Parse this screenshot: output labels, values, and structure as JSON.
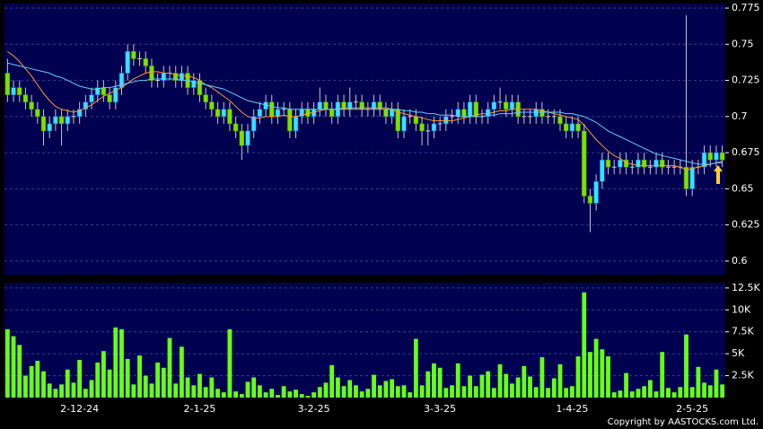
{
  "chart_data": [
    {
      "type": "candlestick",
      "open": [
        0.73,
        0.715,
        0.72,
        0.715,
        0.71,
        0.705,
        0.7,
        0.69,
        0.695,
        0.7,
        0.695,
        0.7,
        0.7,
        0.705,
        0.71,
        0.715,
        0.72,
        0.715,
        0.71,
        0.72,
        0.73,
        0.745,
        0.74,
        0.74,
        0.735,
        0.725,
        0.725,
        0.73,
        0.73,
        0.725,
        0.73,
        0.72,
        0.725,
        0.715,
        0.71,
        0.705,
        0.7,
        0.705,
        0.695,
        0.69,
        0.68,
        0.69,
        0.7,
        0.705,
        0.71,
        0.7,
        0.705,
        0.705,
        0.69,
        0.7,
        0.705,
        0.7,
        0.705,
        0.71,
        0.705,
        0.7,
        0.71,
        0.705,
        0.71,
        0.71,
        0.705,
        0.705,
        0.71,
        0.705,
        0.7,
        0.705,
        0.69,
        0.7,
        0.7,
        0.695,
        0.69,
        0.69,
        0.695,
        0.695,
        0.7,
        0.7,
        0.705,
        0.7,
        0.71,
        0.7,
        0.7,
        0.705,
        0.71,
        0.71,
        0.705,
        0.71,
        0.7,
        0.7,
        0.7,
        0.705,
        0.7,
        0.7,
        0.7,
        0.695,
        0.69,
        0.695,
        0.69,
        0.645,
        0.64,
        0.655,
        0.67,
        0.665,
        0.665,
        0.67,
        0.665,
        0.665,
        0.67,
        0.665,
        0.665,
        0.67,
        0.665,
        0.665,
        0.665,
        0.665,
        0.65,
        0.665,
        0.665,
        0.675,
        0.67,
        0.675
      ],
      "high": [
        0.74,
        0.725,
        0.725,
        0.72,
        0.715,
        0.71,
        0.705,
        0.7,
        0.705,
        0.705,
        0.705,
        0.705,
        0.71,
        0.715,
        0.72,
        0.725,
        0.725,
        0.72,
        0.725,
        0.735,
        0.75,
        0.75,
        0.745,
        0.745,
        0.74,
        0.73,
        0.735,
        0.735,
        0.735,
        0.735,
        0.735,
        0.73,
        0.73,
        0.72,
        0.715,
        0.71,
        0.71,
        0.71,
        0.7,
        0.695,
        0.695,
        0.705,
        0.71,
        0.715,
        0.715,
        0.71,
        0.71,
        0.71,
        0.705,
        0.71,
        0.71,
        0.71,
        0.72,
        0.715,
        0.71,
        0.715,
        0.715,
        0.72,
        0.715,
        0.715,
        0.71,
        0.715,
        0.715,
        0.71,
        0.71,
        0.71,
        0.705,
        0.705,
        0.705,
        0.7,
        0.695,
        0.7,
        0.7,
        0.705,
        0.705,
        0.71,
        0.71,
        0.715,
        0.715,
        0.705,
        0.71,
        0.715,
        0.72,
        0.715,
        0.715,
        0.715,
        0.705,
        0.705,
        0.71,
        0.71,
        0.705,
        0.705,
        0.705,
        0.7,
        0.7,
        0.7,
        0.695,
        0.65,
        0.66,
        0.675,
        0.675,
        0.67,
        0.675,
        0.675,
        0.67,
        0.675,
        0.675,
        0.67,
        0.675,
        0.675,
        0.67,
        0.67,
        0.67,
        0.77,
        0.67,
        0.67,
        0.68,
        0.68,
        0.68,
        0.68
      ],
      "low": [
        0.71,
        0.71,
        0.71,
        0.705,
        0.7,
        0.695,
        0.68,
        0.685,
        0.69,
        0.68,
        0.69,
        0.695,
        0.695,
        0.7,
        0.705,
        0.71,
        0.71,
        0.705,
        0.705,
        0.715,
        0.725,
        0.735,
        0.735,
        0.73,
        0.72,
        0.72,
        0.72,
        0.725,
        0.72,
        0.72,
        0.715,
        0.715,
        0.71,
        0.705,
        0.7,
        0.695,
        0.695,
        0.69,
        0.685,
        0.67,
        0.675,
        0.685,
        0.695,
        0.7,
        0.695,
        0.695,
        0.7,
        0.685,
        0.685,
        0.695,
        0.695,
        0.695,
        0.7,
        0.7,
        0.695,
        0.695,
        0.7,
        0.7,
        0.705,
        0.7,
        0.7,
        0.7,
        0.7,
        0.695,
        0.695,
        0.685,
        0.685,
        0.695,
        0.69,
        0.68,
        0.68,
        0.685,
        0.69,
        0.69,
        0.695,
        0.695,
        0.695,
        0.695,
        0.695,
        0.695,
        0.695,
        0.7,
        0.705,
        0.7,
        0.7,
        0.695,
        0.695,
        0.695,
        0.695,
        0.695,
        0.695,
        0.695,
        0.69,
        0.685,
        0.685,
        0.685,
        0.64,
        0.62,
        0.635,
        0.65,
        0.66,
        0.66,
        0.66,
        0.66,
        0.66,
        0.66,
        0.66,
        0.66,
        0.66,
        0.66,
        0.66,
        0.66,
        0.66,
        0.645,
        0.645,
        0.66,
        0.66,
        0.665,
        0.665,
        0.665
      ],
      "close": [
        0.715,
        0.72,
        0.715,
        0.71,
        0.705,
        0.7,
        0.69,
        0.695,
        0.7,
        0.695,
        0.7,
        0.7,
        0.705,
        0.71,
        0.715,
        0.72,
        0.715,
        0.71,
        0.72,
        0.73,
        0.745,
        0.74,
        0.74,
        0.735,
        0.725,
        0.725,
        0.73,
        0.73,
        0.725,
        0.73,
        0.72,
        0.725,
        0.715,
        0.71,
        0.705,
        0.7,
        0.705,
        0.695,
        0.69,
        0.68,
        0.69,
        0.7,
        0.705,
        0.71,
        0.7,
        0.705,
        0.705,
        0.69,
        0.7,
        0.705,
        0.7,
        0.705,
        0.71,
        0.705,
        0.7,
        0.71,
        0.705,
        0.71,
        0.71,
        0.705,
        0.705,
        0.71,
        0.705,
        0.7,
        0.705,
        0.69,
        0.7,
        0.7,
        0.695,
        0.69,
        0.69,
        0.695,
        0.695,
        0.7,
        0.7,
        0.705,
        0.7,
        0.71,
        0.7,
        0.7,
        0.705,
        0.71,
        0.71,
        0.705,
        0.71,
        0.7,
        0.7,
        0.7,
        0.705,
        0.7,
        0.7,
        0.7,
        0.695,
        0.69,
        0.695,
        0.69,
        0.645,
        0.64,
        0.655,
        0.67,
        0.665,
        0.665,
        0.67,
        0.665,
        0.665,
        0.67,
        0.665,
        0.665,
        0.67,
        0.665,
        0.665,
        0.665,
        0.665,
        0.65,
        0.665,
        0.665,
        0.675,
        0.67,
        0.675,
        0.67
      ],
      "up_color": "#33e6ff",
      "down_color": "#80e000",
      "series": [
        {
          "color": "#ff9933",
          "values": [
            0.745,
            0.742,
            0.738,
            0.733,
            0.728,
            0.722,
            0.716,
            0.711,
            0.707,
            0.705,
            0.704,
            0.703,
            0.704,
            0.706,
            0.708,
            0.711,
            0.714,
            0.716,
            0.718,
            0.72,
            0.723,
            0.726,
            0.728,
            0.73,
            0.731,
            0.731,
            0.73,
            0.73,
            0.729,
            0.728,
            0.728,
            0.727,
            0.725,
            0.722,
            0.72,
            0.717,
            0.714,
            0.711,
            0.707,
            0.703,
            0.7,
            0.699,
            0.699,
            0.7,
            0.7,
            0.7,
            0.701,
            0.7,
            0.7,
            0.701,
            0.702,
            0.703,
            0.704,
            0.705,
            0.705,
            0.705,
            0.706,
            0.706,
            0.706,
            0.706,
            0.706,
            0.706,
            0.706,
            0.706,
            0.705,
            0.703,
            0.702,
            0.701,
            0.7,
            0.699,
            0.698,
            0.697,
            0.697,
            0.697,
            0.697,
            0.698,
            0.699,
            0.7,
            0.701,
            0.702,
            0.702,
            0.703,
            0.704,
            0.704,
            0.705,
            0.705,
            0.705,
            0.705,
            0.705,
            0.704,
            0.703,
            0.702,
            0.701,
            0.7,
            0.699,
            0.698,
            0.694,
            0.689,
            0.684,
            0.68,
            0.676,
            0.673,
            0.671,
            0.668,
            0.667,
            0.666,
            0.666,
            0.666,
            0.666,
            0.666,
            0.666,
            0.666,
            0.665,
            0.663,
            0.664,
            0.665,
            0.666,
            0.667,
            0.668,
            0.669
          ]
        },
        {
          "color": "#66ccff",
          "values": [
            0.737,
            0.736,
            0.735,
            0.734,
            0.733,
            0.732,
            0.731,
            0.73,
            0.728,
            0.727,
            0.725,
            0.723,
            0.721,
            0.72,
            0.719,
            0.719,
            0.72,
            0.72,
            0.721,
            0.722,
            0.723,
            0.724,
            0.725,
            0.725,
            0.726,
            0.726,
            0.726,
            0.726,
            0.726,
            0.725,
            0.725,
            0.724,
            0.723,
            0.722,
            0.721,
            0.72,
            0.719,
            0.717,
            0.715,
            0.713,
            0.711,
            0.71,
            0.709,
            0.708,
            0.707,
            0.706,
            0.706,
            0.705,
            0.705,
            0.705,
            0.705,
            0.705,
            0.705,
            0.705,
            0.705,
            0.705,
            0.705,
            0.705,
            0.705,
            0.705,
            0.705,
            0.705,
            0.705,
            0.705,
            0.705,
            0.705,
            0.704,
            0.704,
            0.703,
            0.703,
            0.702,
            0.702,
            0.701,
            0.701,
            0.701,
            0.7,
            0.7,
            0.7,
            0.7,
            0.7,
            0.701,
            0.701,
            0.702,
            0.702,
            0.702,
            0.703,
            0.703,
            0.703,
            0.703,
            0.703,
            0.703,
            0.703,
            0.703,
            0.702,
            0.702,
            0.701,
            0.7,
            0.698,
            0.696,
            0.693,
            0.69,
            0.688,
            0.686,
            0.684,
            0.682,
            0.68,
            0.678,
            0.676,
            0.674,
            0.673,
            0.672,
            0.671,
            0.67,
            0.669,
            0.668,
            0.667,
            0.667,
            0.667,
            0.668,
            0.668
          ]
        }
      ],
      "ylim": [
        0.590625,
        0.778125
      ],
      "yticks": [
        0.6,
        0.625,
        0.65,
        0.675,
        0.7,
        0.725,
        0.75,
        0.775
      ],
      "grid": true
    },
    {
      "type": "bar",
      "categories": [
        null,
        null,
        null,
        null,
        null,
        null,
        null,
        null,
        null,
        null,
        null,
        null,
        "2-12-24",
        null,
        null,
        null,
        null,
        null,
        null,
        null,
        null,
        null,
        null,
        null,
        null,
        null,
        null,
        null,
        null,
        null,
        null,
        null,
        "2-1-25",
        null,
        null,
        null,
        null,
        null,
        null,
        null,
        null,
        null,
        null,
        null,
        null,
        null,
        null,
        null,
        null,
        null,
        null,
        "3-2-25",
        null,
        null,
        null,
        null,
        null,
        null,
        null,
        null,
        null,
        null,
        null,
        null,
        null,
        null,
        null,
        null,
        null,
        null,
        null,
        null,
        "3-3-25",
        null,
        null,
        null,
        null,
        null,
        null,
        null,
        null,
        null,
        null,
        null,
        null,
        null,
        null,
        null,
        null,
        null,
        null,
        null,
        null,
        null,
        "1-4-25",
        null,
        null,
        null,
        null,
        null,
        null,
        null,
        null,
        null,
        null,
        null,
        null,
        null,
        null,
        null,
        null,
        null,
        null,
        null,
        "2-5-25",
        null,
        null,
        null,
        null,
        null
      ],
      "values": [
        7800,
        7000,
        6000,
        2500,
        3600,
        4200,
        3000,
        1600,
        1000,
        1500,
        3200,
        1700,
        4300,
        1000,
        2000,
        4000,
        5300,
        3200,
        8000,
        7800,
        4400,
        1500,
        4800,
        2500,
        1600,
        4000,
        3400,
        6800,
        1600,
        5800,
        2300,
        1400,
        2700,
        1200,
        2300,
        1000,
        600,
        7800,
        700,
        400,
        1800,
        2300,
        1400,
        600,
        1000,
        300,
        1300,
        700,
        900,
        400,
        200,
        600,
        1200,
        1700,
        3700,
        2300,
        1300,
        2000,
        1400,
        700,
        1000,
        2600,
        1400,
        1900,
        2100,
        1300,
        1400,
        600,
        6700,
        1400,
        3000,
        3900,
        3400,
        1100,
        1400,
        3900,
        1300,
        2500,
        1300,
        2600,
        3000,
        1100,
        3800,
        2700,
        1600,
        2300,
        3600,
        2400,
        1200,
        4600,
        1100,
        2200,
        3800,
        1100,
        1300,
        4700,
        12000,
        5200,
        6700,
        5500,
        4700,
        600,
        800,
        2800,
        700,
        1000,
        1300,
        2000,
        700,
        5200,
        1100,
        600,
        1200,
        7200,
        1200,
        3500,
        1700,
        1400,
        3200,
        1500
      ],
      "color": "#66ff1a",
      "ylim": [
        0,
        13100
      ],
      "yticks": [
        {
          "value": 2500,
          "label": "2.5K"
        },
        {
          "value": 5000,
          "label": "5K"
        },
        {
          "value": 7500,
          "label": "7.5K"
        },
        {
          "value": 10000,
          "label": "10K"
        },
        {
          "value": 12500,
          "label": "12.5K"
        }
      ],
      "grid": true,
      "annotation": "Copyright by AASTOCKS.com Ltd."
    }
  ]
}
